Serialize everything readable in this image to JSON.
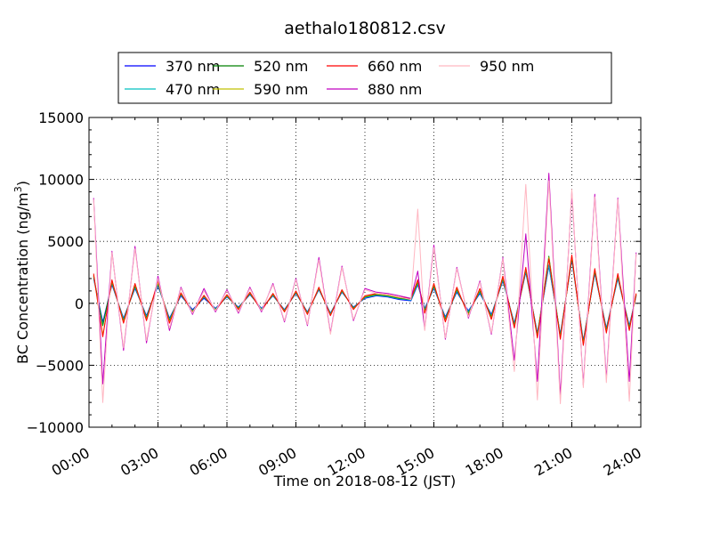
{
  "chart_data": {
    "type": "line",
    "title": "aethalo180812.csv",
    "xlabel": "Time on 2018-08-12 (JST)",
    "ylabel": "BC Concentration (ng/m³)",
    "ylabel_main": "BC Concentration (ng/m",
    "ylabel_sup": "3",
    "ylabel_close": ")",
    "xlim": [
      "00:00",
      "24:00"
    ],
    "ylim": [
      -10000,
      15000
    ],
    "x_ticks": [
      "00:00",
      "03:00",
      "06:00",
      "09:00",
      "12:00",
      "15:00",
      "18:00",
      "21:00",
      "24:00"
    ],
    "y_ticks": [
      "15000",
      "10000",
      "5000",
      "0",
      "−5000",
      "−10000"
    ],
    "grid": true,
    "legend_position": "top",
    "x_hours": [
      0.2,
      0.6,
      1.0,
      1.5,
      2.0,
      2.5,
      3.0,
      3.5,
      4.0,
      4.5,
      5.0,
      5.5,
      6.0,
      6.5,
      7.0,
      7.5,
      8.0,
      8.5,
      9.0,
      9.5,
      10.0,
      10.5,
      11.0,
      11.5,
      12.0,
      12.5,
      13.0,
      13.5,
      14.0,
      14.3,
      14.6,
      15.0,
      15.5,
      16.0,
      16.5,
      17.0,
      17.5,
      18.0,
      18.5,
      19.0,
      19.5,
      20.0,
      20.5,
      21.0,
      21.5,
      22.0,
      22.5,
      23.0,
      23.5,
      23.8
    ],
    "series": [
      {
        "name": "370 nm",
        "color": "#0000ff",
        "values": [
          2000,
          -1500,
          1500,
          -1200,
          1200,
          -1000,
          1400,
          -1200,
          600,
          -500,
          400,
          -400,
          500,
          -300,
          700,
          -400,
          600,
          -500,
          800,
          -700,
          1100,
          -800,
          900,
          -300,
          400,
          600,
          500,
          300,
          200,
          1500,
          -400,
          1200,
          -1100,
          900,
          -600,
          800,
          -900,
          1800,
          -1600,
          2500,
          -2400,
          3000,
          -2500,
          3500,
          -3000,
          2400,
          -2000,
          2000,
          -1800,
          600
        ]
      },
      {
        "name": "470 nm",
        "color": "#00c0c0",
        "values": [
          2100,
          -1700,
          1600,
          -1300,
          1300,
          -1100,
          1500,
          -1300,
          700,
          -600,
          500,
          -450,
          550,
          -350,
          750,
          -450,
          650,
          -550,
          850,
          -750,
          1150,
          -850,
          950,
          -350,
          450,
          650,
          550,
          350,
          250,
          1600,
          -500,
          1300,
          -1200,
          1000,
          -700,
          900,
          -1000,
          1900,
          -1700,
          2600,
          -2500,
          3100,
          -2600,
          3600,
          -3100,
          2500,
          -2100,
          2100,
          -1900,
          650
        ]
      },
      {
        "name": "520 nm",
        "color": "#008000",
        "values": [
          2200,
          -1800,
          1700,
          -1400,
          1400,
          -1200,
          1600,
          -1400,
          750,
          -650,
          550,
          -500,
          600,
          -400,
          800,
          -500,
          700,
          -600,
          900,
          -800,
          1200,
          -900,
          1000,
          -400,
          500,
          700,
          600,
          400,
          300,
          1700,
          -600,
          1400,
          -1300,
          1100,
          -800,
          1000,
          -1100,
          2000,
          -1800,
          2700,
          -2600,
          3800,
          -2700,
          3700,
          -3200,
          2600,
          -2200,
          2200,
          -2000,
          700
        ]
      },
      {
        "name": "590 nm",
        "color": "#c0c000",
        "values": [
          2300,
          -2600,
          1800,
          -1500,
          1500,
          -1300,
          1700,
          -1500,
          800,
          -700,
          600,
          -550,
          650,
          -450,
          850,
          -550,
          750,
          -650,
          950,
          -850,
          1250,
          -950,
          1050,
          -450,
          550,
          750,
          650,
          450,
          350,
          1800,
          -700,
          1500,
          -1400,
          1200,
          -900,
          1100,
          -1200,
          2100,
          -1900,
          2800,
          -2700,
          3700,
          -2800,
          3800,
          -3300,
          2700,
          -2300,
          2300,
          -2100,
          750
        ]
      },
      {
        "name": "660 nm",
        "color": "#ff0000",
        "values": [
          2400,
          -2700,
          1900,
          -1600,
          1600,
          -1400,
          1800,
          -1600,
          850,
          -750,
          650,
          -600,
          700,
          -500,
          900,
          -600,
          800,
          -700,
          1000,
          -900,
          1300,
          -1000,
          1100,
          -500,
          600,
          800,
          700,
          500,
          400,
          1900,
          -800,
          1600,
          -1500,
          1300,
          -1000,
          1200,
          -1300,
          2200,
          -2000,
          2900,
          -2800,
          3600,
          -2900,
          3900,
          -3400,
          2800,
          -2400,
          2400,
          -2200,
          800
        ]
      },
      {
        "name": "880 nm",
        "color": "#c000c0",
        "values": [
          8500,
          -6500,
          4200,
          -3800,
          4600,
          -3200,
          2200,
          -2200,
          1300,
          -900,
          1200,
          -700,
          1100,
          -800,
          1300,
          -700,
          1600,
          -1500,
          2000,
          -1800,
          3700,
          -2400,
          3000,
          -1400,
          1200,
          900,
          800,
          600,
          400,
          2600,
          -2100,
          4700,
          -2900,
          2900,
          -1200,
          1800,
          -2500,
          3700,
          -4600,
          5600,
          -6300,
          10500,
          -7500,
          9000,
          -6600,
          8800,
          -6100,
          8500,
          -6300,
          4100
        ]
      },
      {
        "name": "950 nm",
        "color": "#ffb6c1",
        "values": [
          8400,
          -8000,
          4100,
          -3600,
          4400,
          -3000,
          2000,
          -2000,
          1200,
          -800,
          1000,
          -600,
          1000,
          -700,
          1200,
          -600,
          1500,
          -1400,
          1900,
          -1700,
          3500,
          -2500,
          2900,
          -1300,
          1100,
          800,
          700,
          500,
          300,
          7600,
          -2200,
          4500,
          -2800,
          2800,
          -1100,
          1700,
          -2400,
          3600,
          -5500,
          9600,
          -7800,
          9900,
          -8100,
          9200,
          -6800,
          8600,
          -6400,
          8400,
          -7900,
          4000
        ]
      }
    ]
  }
}
